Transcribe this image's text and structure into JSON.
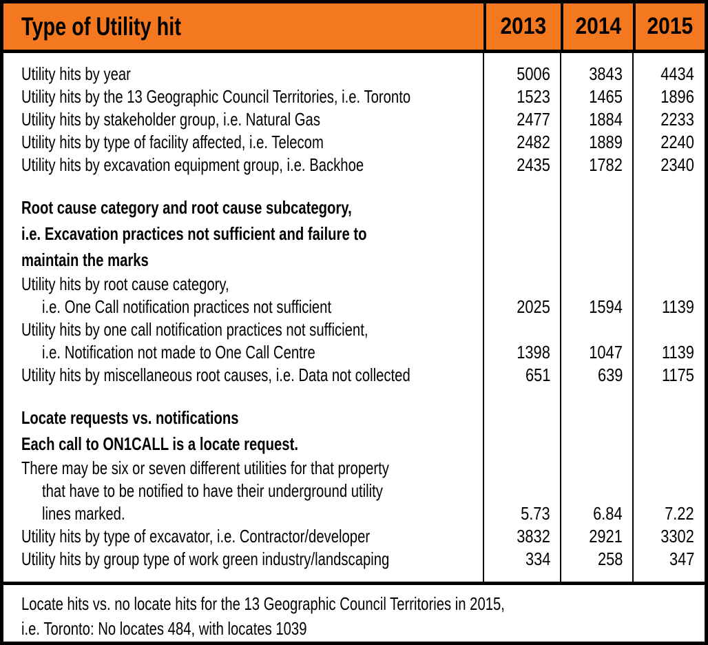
{
  "colors": {
    "header_bg": "#F4781F",
    "border": "#000000",
    "text": "#000000",
    "background": "#FFFFFF"
  },
  "header": {
    "title": "Type of Utility hit",
    "years": [
      "2013",
      "2014",
      "2015"
    ]
  },
  "rows": [
    {
      "label": "Utility hits by year",
      "values": [
        "5006",
        "3843",
        "4434"
      ]
    },
    {
      "label": "Utility hits by the 13 Geographic Council Territories, i.e. Toronto",
      "values": [
        "1523",
        "1465",
        "1896"
      ]
    },
    {
      "label": "Utility hits by stakeholder group, i.e. Natural Gas",
      "values": [
        "2477",
        "1884",
        "2233"
      ]
    },
    {
      "label": "Utility hits by type of facility affected, i.e. Telecom",
      "values": [
        "2482",
        "1889",
        "2240"
      ]
    },
    {
      "label": "Utility hits by excavation equipment group, i.e. Backhoe",
      "values": [
        "2435",
        "1782",
        "2340"
      ]
    },
    {
      "type": "spacer"
    },
    {
      "label": "Root cause category and root cause subcategory,",
      "bold": true
    },
    {
      "label": "i.e. Excavation practices not sufficient and failure to",
      "bold": true
    },
    {
      "label": "maintain the marks",
      "bold": true
    },
    {
      "label": "Utility hits by root cause category,"
    },
    {
      "label": "i.e. One Call notification practices not sufficient",
      "indent": true,
      "values": [
        "2025",
        "1594",
        "1139"
      ]
    },
    {
      "label": "Utility hits by one call notification practices not sufficient,"
    },
    {
      "label": "i.e. Notification not made to One Call Centre",
      "indent": true,
      "values": [
        "1398",
        "1047",
        "1139"
      ]
    },
    {
      "label": "Utility hits by miscellaneous root causes, i.e. Data not collected",
      "values": [
        "651",
        "639",
        "1175"
      ]
    },
    {
      "type": "spacer"
    },
    {
      "label": "Locate requests vs. notifications",
      "bold": true
    },
    {
      "label": "Each call to ON1CALL is a locate request.",
      "bold": true
    },
    {
      "label": "There may be six or seven different utilities for that property"
    },
    {
      "label": "that have to be notified to have their underground utility",
      "indent": true
    },
    {
      "label": "lines marked.",
      "indent": true,
      "values": [
        "5.73",
        "6.84",
        "7.22"
      ]
    },
    {
      "label": "Utility hits by type of excavator, i.e. Contractor/developer",
      "values": [
        "3832",
        "2921",
        "3302"
      ]
    },
    {
      "label": "Utility hits by group type of work green industry/landscaping",
      "values": [
        "334",
        "258",
        "347"
      ]
    }
  ],
  "footer": {
    "line1": "Locate hits vs. no locate hits for the 13 Geographic Council Territories in 2015,",
    "line2": "i.e. Toronto: No locates 484, with locates 1039"
  },
  "chart_data": {
    "type": "table",
    "title": "Type of Utility hit",
    "columns": [
      "2013",
      "2014",
      "2015"
    ],
    "rows": [
      {
        "label": "Utility hits by year",
        "values": [
          5006,
          3843,
          4434
        ]
      },
      {
        "label": "Utility hits by the 13 Geographic Council Territories, i.e. Toronto",
        "values": [
          1523,
          1465,
          1896
        ]
      },
      {
        "label": "Utility hits by stakeholder group, i.e. Natural Gas",
        "values": [
          2477,
          1884,
          2233
        ]
      },
      {
        "label": "Utility hits by type of facility affected, i.e. Telecom",
        "values": [
          2482,
          1889,
          2240
        ]
      },
      {
        "label": "Utility hits by excavation equipment group, i.e. Backhoe",
        "values": [
          2435,
          1782,
          2340
        ]
      },
      {
        "label": "Utility hits by root cause category, i.e. One Call notification practices not sufficient",
        "values": [
          2025,
          1594,
          1139
        ]
      },
      {
        "label": "Utility hits by one call notification practices not sufficient, i.e. Notification not made to One Call Centre",
        "values": [
          1398,
          1047,
          1139
        ]
      },
      {
        "label": "Utility hits by miscellaneous root causes, i.e. Data not collected",
        "values": [
          651,
          639,
          1175
        ]
      },
      {
        "label": "Locate requests vs. notifications (utilities notified per locate request, lines marked)",
        "values": [
          5.73,
          6.84,
          7.22
        ]
      },
      {
        "label": "Utility hits by type of excavator, i.e. Contractor/developer",
        "values": [
          3832,
          2921,
          3302
        ]
      },
      {
        "label": "Utility hits by group type of work green industry/landscaping",
        "values": [
          334,
          258,
          347
        ]
      }
    ],
    "section_notes": [
      "Root cause category and root cause subcategory, i.e. Excavation practices not sufficient and failure to maintain the marks",
      "Locate requests vs. notifications — Each call to ON1CALL is a locate request. There may be six or seven different utilities for that property that have to be notified to have their underground utility lines marked."
    ],
    "footnote": "Locate hits vs. no locate hits for the 13 Geographic Council Territories in 2015, i.e. Toronto: No locates 484, with locates 1039"
  }
}
